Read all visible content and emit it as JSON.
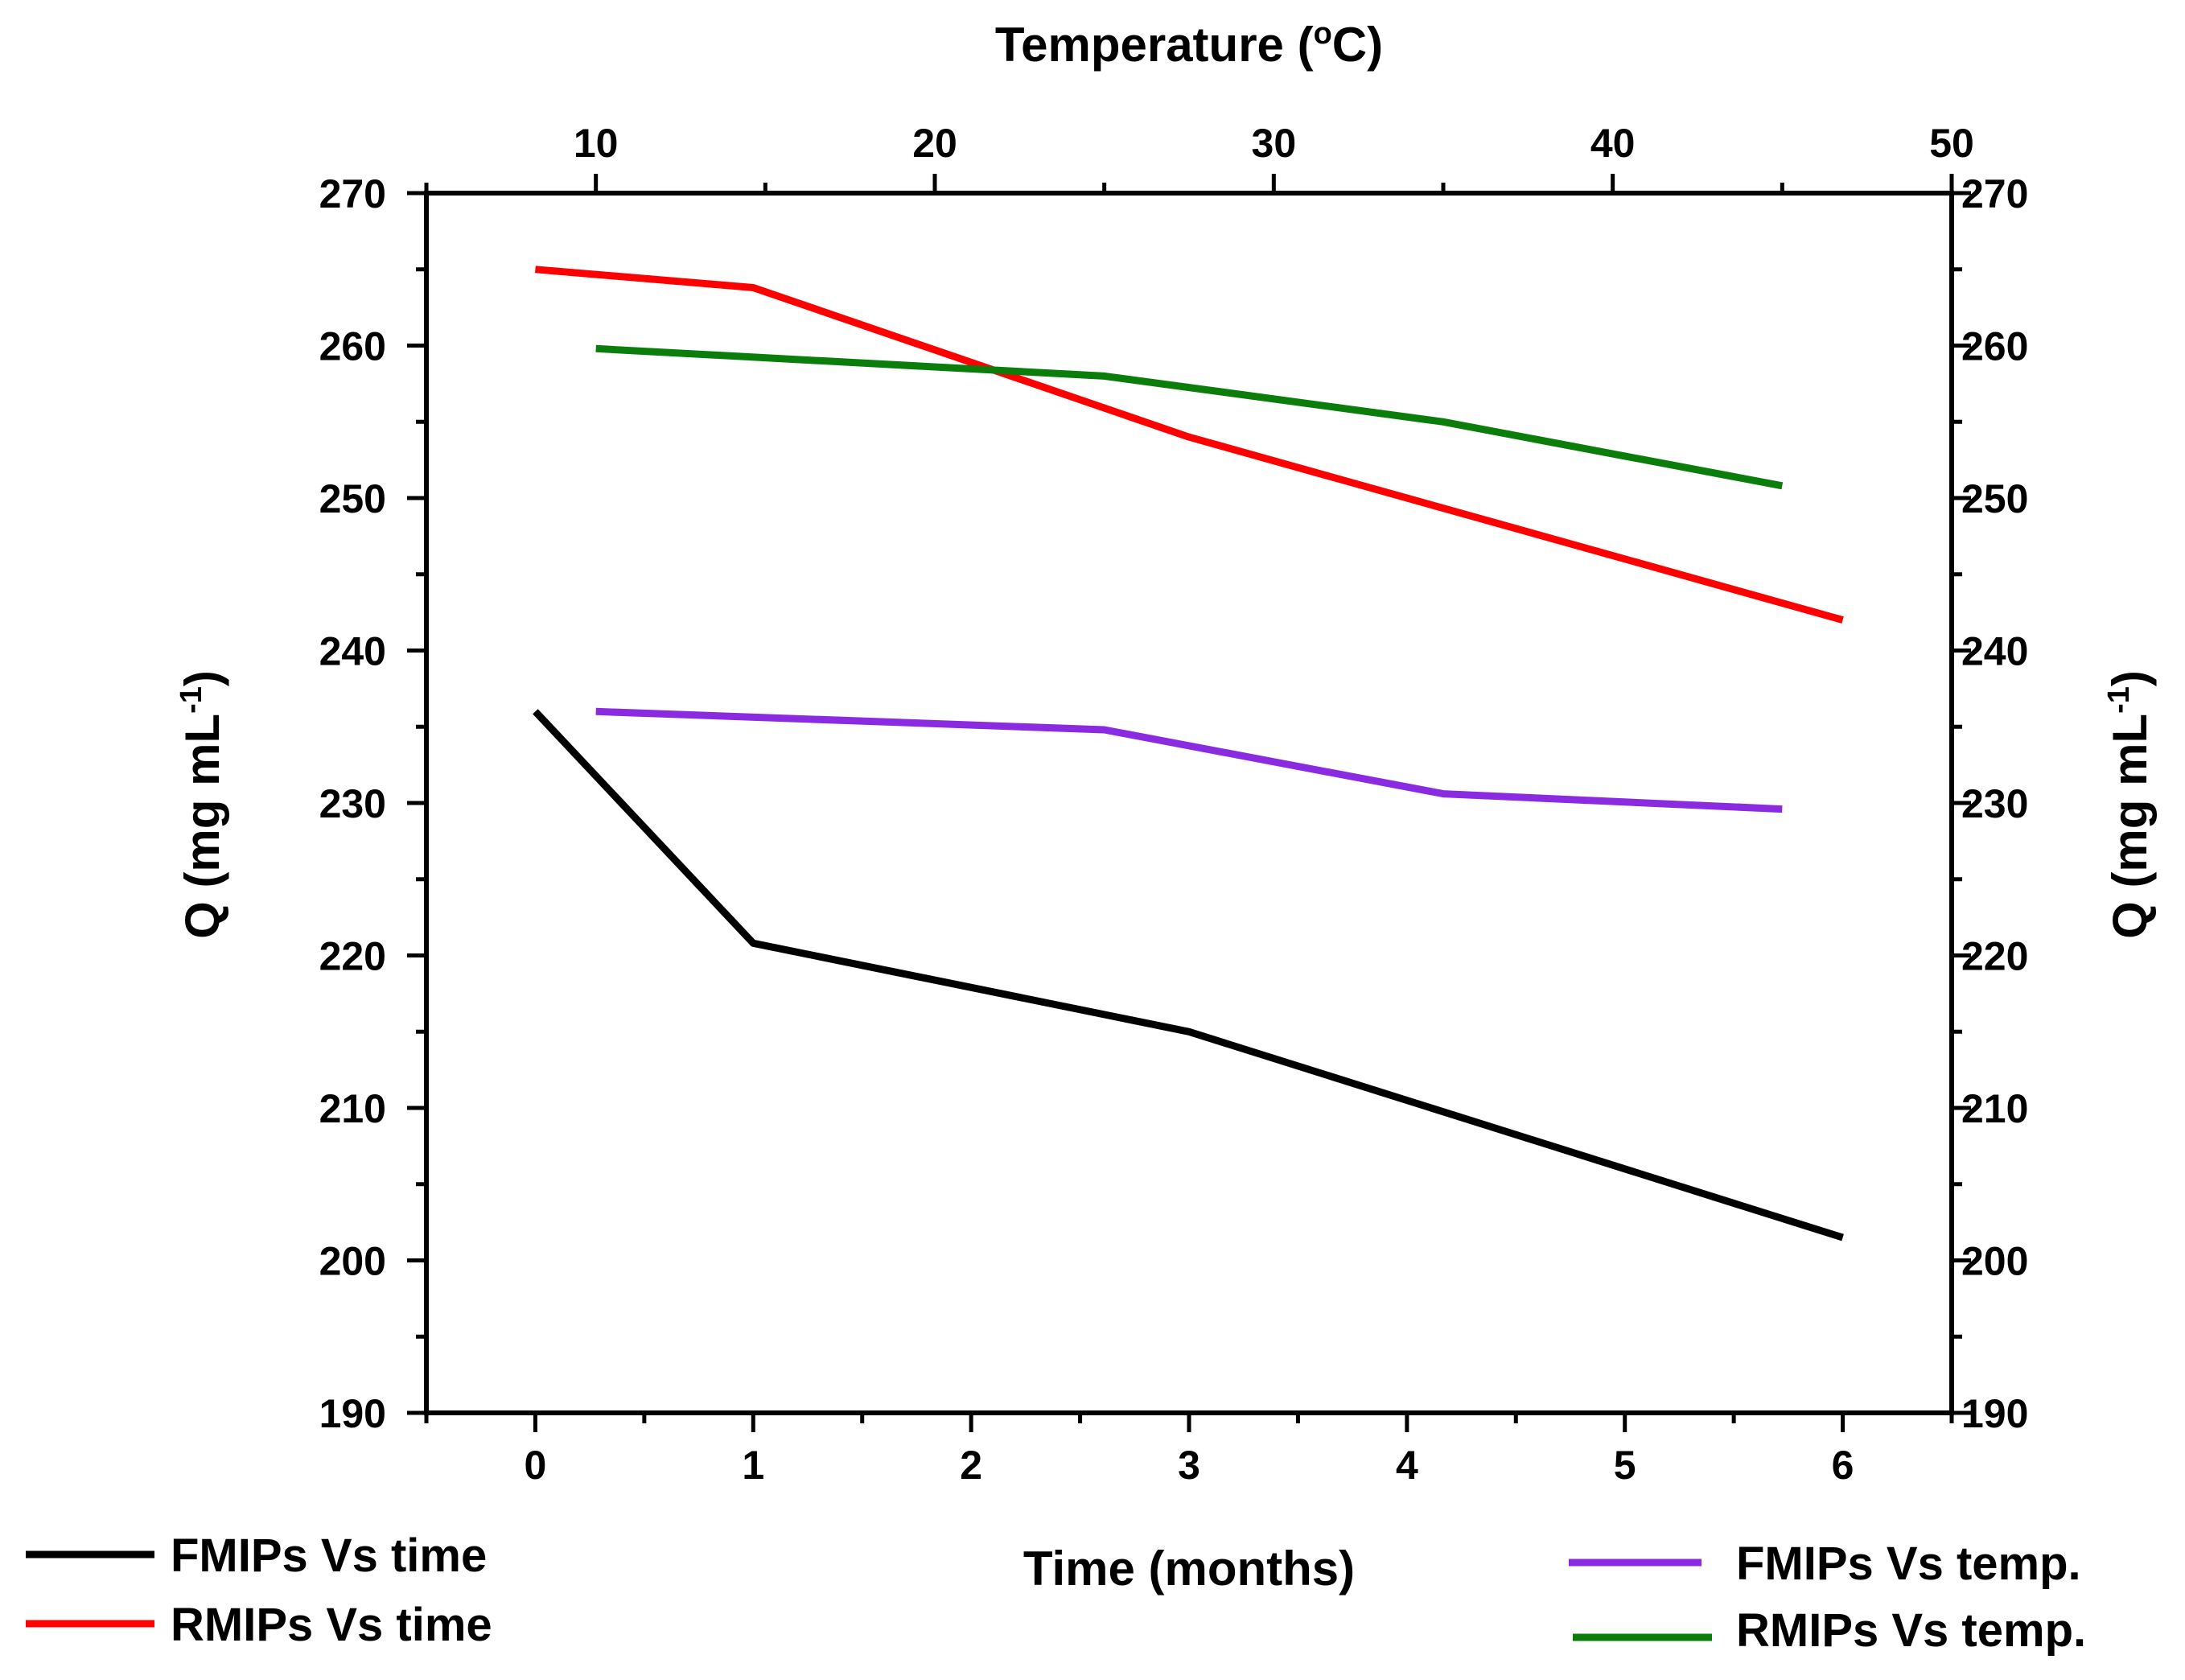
{
  "chart_data": {
    "type": "line",
    "top_axis": {
      "title_main": "Temperature (",
      "title_sup": "o",
      "title_end": "C)",
      "range": [
        5,
        50
      ],
      "ticks": [
        10,
        20,
        30,
        40,
        50
      ]
    },
    "bottom_axis": {
      "title": "Time (months)",
      "range": [
        -0.5,
        6.5
      ],
      "ticks": [
        0,
        1,
        2,
        3,
        4,
        5,
        6
      ]
    },
    "left_axis": {
      "title_main": "Q (mg mL",
      "title_sup": "-1",
      "title_end": ")",
      "range": [
        190,
        270
      ],
      "ticks": [
        190,
        200,
        210,
        220,
        230,
        240,
        250,
        260,
        270
      ]
    },
    "right_axis": {
      "title_main": "Q (mg mL",
      "title_sup": "-1",
      "title_end": ")",
      "range": [
        190,
        270
      ],
      "ticks": [
        190,
        200,
        210,
        220,
        230,
        240,
        250,
        260,
        270
      ]
    },
    "series": [
      {
        "name": "FMIPs Vs time",
        "axis": "time",
        "color": "#000000",
        "x": [
          0,
          1,
          3,
          6
        ],
        "y": [
          236,
          220.8,
          215,
          201.5
        ]
      },
      {
        "name": "RMIPs Vs time",
        "axis": "time",
        "color": "#ff0000",
        "x": [
          0,
          1,
          3,
          6
        ],
        "y": [
          265,
          263.8,
          254,
          242
        ]
      },
      {
        "name": "FMIPs Vs temp.",
        "axis": "temp",
        "color": "#8a2be2",
        "x": [
          10,
          25,
          35,
          45
        ],
        "y": [
          236,
          234.8,
          230.6,
          229.6
        ]
      },
      {
        "name": "RMIPs Vs temp.",
        "axis": "temp",
        "color": "#0a7d0a",
        "x": [
          10,
          25,
          35,
          45
        ],
        "y": [
          259.8,
          258,
          255,
          250.8
        ]
      }
    ],
    "legend_position": "below-plot"
  }
}
